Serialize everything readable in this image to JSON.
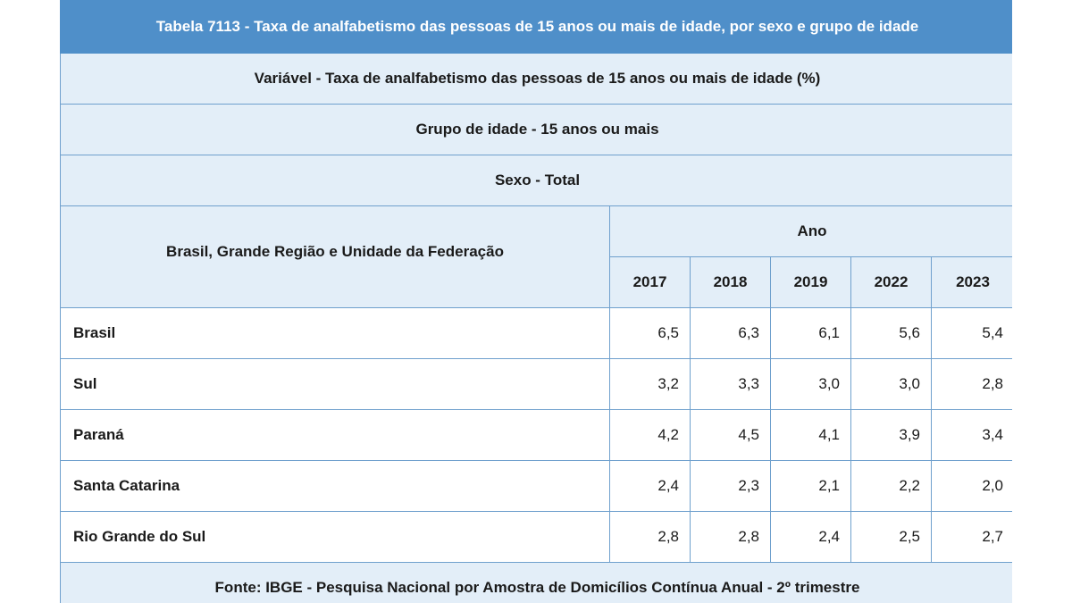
{
  "title": "Tabela 7113 - Taxa de analfabetismo das pessoas de 15 anos ou mais de idade, por sexo e grupo de idade",
  "variavel": "Variável - Taxa de analfabetismo das pessoas de 15 anos ou mais de idade (%)",
  "grupo": "Grupo de idade - 15 anos ou mais",
  "sexo": "Sexo - Total",
  "region_header": "Brasil, Grande Região e Unidade da Federação",
  "ano_header": "Ano",
  "years": [
    "2017",
    "2018",
    "2019",
    "2022",
    "2023"
  ],
  "rows": [
    {
      "name": "Brasil",
      "values": [
        "6,5",
        "6,3",
        "6,1",
        "5,6",
        "5,4"
      ]
    },
    {
      "name": "Sul",
      "values": [
        "3,2",
        "3,3",
        "3,0",
        "3,0",
        "2,8"
      ]
    },
    {
      "name": "Paraná",
      "values": [
        "4,2",
        "4,5",
        "4,1",
        "3,9",
        "3,4"
      ]
    },
    {
      "name": "Santa Catarina",
      "values": [
        "2,4",
        "2,3",
        "2,1",
        "2,2",
        "2,0"
      ]
    },
    {
      "name": "Rio Grande do Sul",
      "values": [
        "2,8",
        "2,8",
        "2,4",
        "2,5",
        "2,7"
      ]
    }
  ],
  "fonte": "Fonte: IBGE - Pesquisa Nacional por Amostra de Domicílios Contínua Anual - 2º trimestre"
}
